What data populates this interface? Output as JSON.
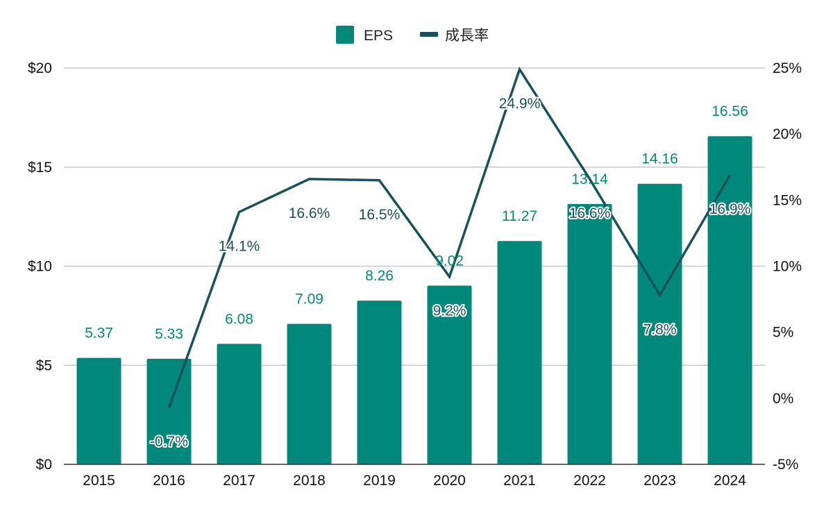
{
  "chart_data": {
    "type": "bar",
    "categories": [
      "2015",
      "2016",
      "2017",
      "2018",
      "2019",
      "2020",
      "2021",
      "2022",
      "2023",
      "2024"
    ],
    "series": [
      {
        "name": "EPS",
        "type": "bar",
        "axis": "left",
        "color": "#00897b",
        "values": [
          5.37,
          5.33,
          6.08,
          7.09,
          8.26,
          9.02,
          11.27,
          13.14,
          14.16,
          16.56
        ],
        "labels": [
          "5.37",
          "5.33",
          "6.08",
          "7.09",
          "8.26",
          "9.02",
          "11.27",
          "13.14",
          "14.16",
          "16.56"
        ]
      },
      {
        "name": "成長率",
        "type": "line",
        "axis": "right",
        "color": "#18505e",
        "values": [
          null,
          -0.7,
          14.1,
          16.6,
          16.5,
          9.2,
          24.9,
          16.6,
          7.8,
          16.9
        ],
        "labels": [
          "",
          "-0.7%",
          "14.1%",
          "16.6%",
          "16.5%",
          "9.2%",
          "24.9%",
          "16.6%",
          "7.8%",
          "16.9%"
        ]
      }
    ],
    "y_left": {
      "min": 0,
      "max": 20,
      "ticks": [
        0,
        5,
        10,
        15,
        20
      ],
      "tick_labels": [
        "$0",
        "$5",
        "$10",
        "$15",
        "$20"
      ]
    },
    "y_right": {
      "min": -5,
      "max": 25,
      "ticks": [
        -5,
        0,
        5,
        10,
        15,
        20,
        25
      ],
      "tick_labels": [
        "-5%",
        "0%",
        "5%",
        "10%",
        "15%",
        "20%",
        "25%"
      ]
    },
    "grid": true,
    "legend": "top-center",
    "title": "",
    "xlabel": "",
    "ylabel": ""
  }
}
